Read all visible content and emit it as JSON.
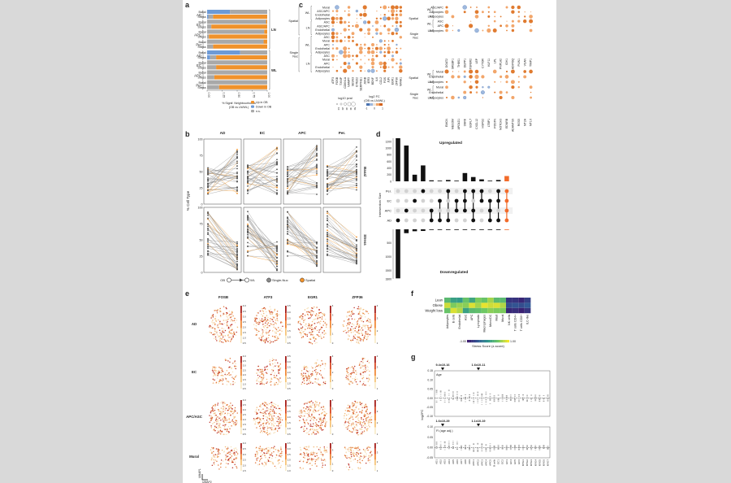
{
  "panel_letters": {
    "a": "a",
    "b": "b",
    "c": "c",
    "d": "d",
    "e": "e",
    "f": "f",
    "g": "g"
  },
  "panel_a": {
    "groups": [
      "AD",
      "EC",
      "APC",
      "Per"
    ],
    "rows": [
      "Basal",
      "Stress"
    ],
    "blocks": [
      "LN",
      "WL"
    ],
    "axis_ticks": [
      "0.00",
      "0.25",
      "0.50",
      "0.75",
      "1.00"
    ],
    "xlabel": "% Signif. Neighbourhoods\n(OB vs LN/WL)",
    "legend": [
      "Up in OB",
      "Down in OB",
      "n.s."
    ],
    "colors": {
      "up": "#f0922b",
      "down": "#6d9ad6",
      "ns": "#a9a9a9"
    }
  },
  "panel_b": {
    "columns": [
      "AD",
      "EC",
      "APC",
      "Per."
    ],
    "rows": [
      "Basal",
      "Stress"
    ],
    "ylabel": "% Cell Type",
    "yticks": [
      "0",
      "25",
      "50",
      "75",
      "100"
    ],
    "legend": {
      "ob": "OB",
      "wl": "WL",
      "single": "Single-Nuc",
      "spatial": "Spatial"
    }
  },
  "panel_c": {
    "rowlabels_left": [
      "Mural",
      "ASC/APC",
      "Endothelial",
      "Adipocytes",
      "ASC",
      "ASC/APC",
      "Endothelial",
      "Adipocytes",
      "ASC",
      "Mural",
      "APC",
      "Endothelial",
      "Adipocytes",
      "ASC",
      "Mural",
      "APC",
      "Endothelial",
      "Adipocytes"
    ],
    "genes_left": [
      "ATF3",
      "FOSB",
      "TXNIP",
      "CDKN1A",
      "NAMPT",
      "SESN3",
      "CITED2",
      "SERPINE1",
      "JUNB",
      "IER3",
      "BDNF",
      "IL6",
      "CCL2",
      "FOS",
      "JUN",
      "EGR1",
      "ZFP36",
      "NR4A1"
    ],
    "rowlabels_right": [
      "ASC/APC",
      "Adipocytes",
      "Adipocytes",
      "ASC",
      "APC",
      "Adipocytes"
    ],
    "genes_right": [
      "DGAT2",
      "SREBF1",
      "THBS1",
      "DEPP1",
      "TGFBR2",
      "LEP",
      "CYTOR",
      "KLF11",
      "LPL",
      "PNPLA2",
      "IDH1",
      "ADIPOQ",
      "PLIN1",
      "VCAN",
      "TIMP1"
    ],
    "rowlabels_right2": [
      "Mural",
      "Endothelial",
      "Adipocytes",
      "Mural",
      "Endothelial",
      "Adipocytes"
    ],
    "genes_right2": [
      "EMCN",
      "MECOM",
      "APOLD1",
      "SNRK",
      "EGFL7",
      "CXCL12",
      "HSPG2",
      "LTBP1",
      "POSTN",
      "NOTCH3",
      "EDNRB",
      "ADAMTS9",
      "RGS5",
      "MT2A",
      "MT1X"
    ],
    "groups": {
      "spatial": "Spatial",
      "single": "Single\nNuc",
      "wl": "WL",
      "ln": "LN"
    },
    "legend_size": "log10 pval",
    "legend_color": "log2 FC\n(OB vs LN/WL)",
    "size_ticks": [
      "10",
      "20",
      "30",
      "40",
      "50"
    ],
    "color_ticks": [
      "-1",
      "0",
      "1"
    ]
  },
  "panel_d": {
    "title_up": "Upregulated",
    "title_down": "Downregulated",
    "ylabel": "Intersection Size",
    "sets": [
      "Per.",
      "EC",
      "APC",
      "AD"
    ],
    "up_ticks": [
      "0",
      "100",
      "200",
      "300",
      "400",
      "500",
      "600",
      "700",
      "800",
      "900",
      "1000",
      "1100",
      "1200",
      "1300"
    ],
    "down_ticks": [
      "500",
      "1000",
      "1500",
      "1800"
    ],
    "up_values": [
      1300,
      1080,
      200,
      480,
      30,
      20,
      40,
      20,
      250,
      130,
      60,
      20,
      40,
      160
    ],
    "down_values": [
      1780,
      140,
      70,
      60,
      20,
      20,
      10,
      10,
      10,
      10,
      10,
      10,
      10,
      10
    ],
    "colors": {
      "bar": "#111111",
      "highlight": "#f26b2b",
      "dot_off": "#d2d2d2",
      "dot_on": "#111111"
    }
  },
  "panel_e": {
    "genes": [
      "FOSB",
      "ATF3",
      "EGR1",
      "ZFP36"
    ],
    "celltypes": [
      "AD",
      "EC",
      "APC/ASC",
      "Mural"
    ],
    "scales": [
      [
        "4.0",
        "3.5",
        "3.0",
        "2.5",
        "2.0",
        "1.5",
        "1.0",
        "0.5"
      ],
      [
        "3.5",
        "3.0",
        "2.5",
        "2.0",
        "1.5",
        "1.0",
        "0.5"
      ],
      [
        "4",
        "3",
        "2",
        "1",
        "0"
      ],
      [
        "4",
        "3",
        "2",
        "1"
      ]
    ],
    "umap_x": "UMAP2",
    "umap_y": "UMAP1"
  },
  "panel_f": {
    "rows": [
      "Lean",
      "Obese",
      "Weight loss"
    ],
    "cols": [
      "Adipocytes",
      "B cells",
      "Endothelial",
      "ASC",
      "APC",
      "Lymphatic",
      "Macrophages",
      "Mono/DC",
      "Mast",
      "Mural",
      "NK cells",
      "T cells CD4+",
      "T cells CD8+",
      "ILC-like"
    ],
    "values": [
      [
        0.35,
        0.1,
        0.05,
        0.45,
        0.15,
        0.55,
        0.45,
        0.7,
        0.35,
        0.35,
        -0.8,
        -0.8,
        -0.9,
        -0.7
      ],
      [
        0.85,
        0.55,
        0.65,
        0.6,
        0.9,
        0.7,
        0.95,
        0.85,
        0.9,
        0.75,
        -0.6,
        -0.55,
        -0.6,
        -0.5
      ],
      [
        0.45,
        0.9,
        0.75,
        0.1,
        0.35,
        0.4,
        0.5,
        0.6,
        0.55,
        0.55,
        -0.9,
        -0.85,
        -0.95,
        -0.8
      ]
    ],
    "colorbar_ticks": [
      "-1.00",
      "1.00"
    ],
    "colorbar_label": "Stress Score (z-score)"
  },
  "panel_g": {
    "top_pvals": [
      "9.4x10-16",
      "1.6x10-11"
    ],
    "bottom_pvals": [
      "1.6x10-29",
      "1.1x10-19"
    ],
    "top_label": "Age",
    "bottom_label": "FI (age adj.)",
    "ylabel": "log2FC",
    "top_yticks": [
      "0.15",
      "0.10",
      "0.05",
      "0.00",
      "-0.05",
      "-0.10"
    ],
    "bottom_yticks": [
      "0.10",
      "0.05",
      "0.00",
      "-0.05"
    ],
    "xticks": [
      "AD1",
      "AD2",
      "AD3",
      "AD4",
      "AD5",
      "AD6",
      "AD7",
      "AD8",
      "AD9",
      "APC1",
      "APC2",
      "APC3",
      "APC4",
      "APC5",
      "B cells",
      "EC1",
      "EC2",
      "EC3",
      "EC4",
      "EC5",
      "EC6",
      "MYE1",
      "MYE2",
      "MYE3",
      "MYE4",
      "MYE5",
      "MYE6",
      "MYE7"
    ]
  }
}
